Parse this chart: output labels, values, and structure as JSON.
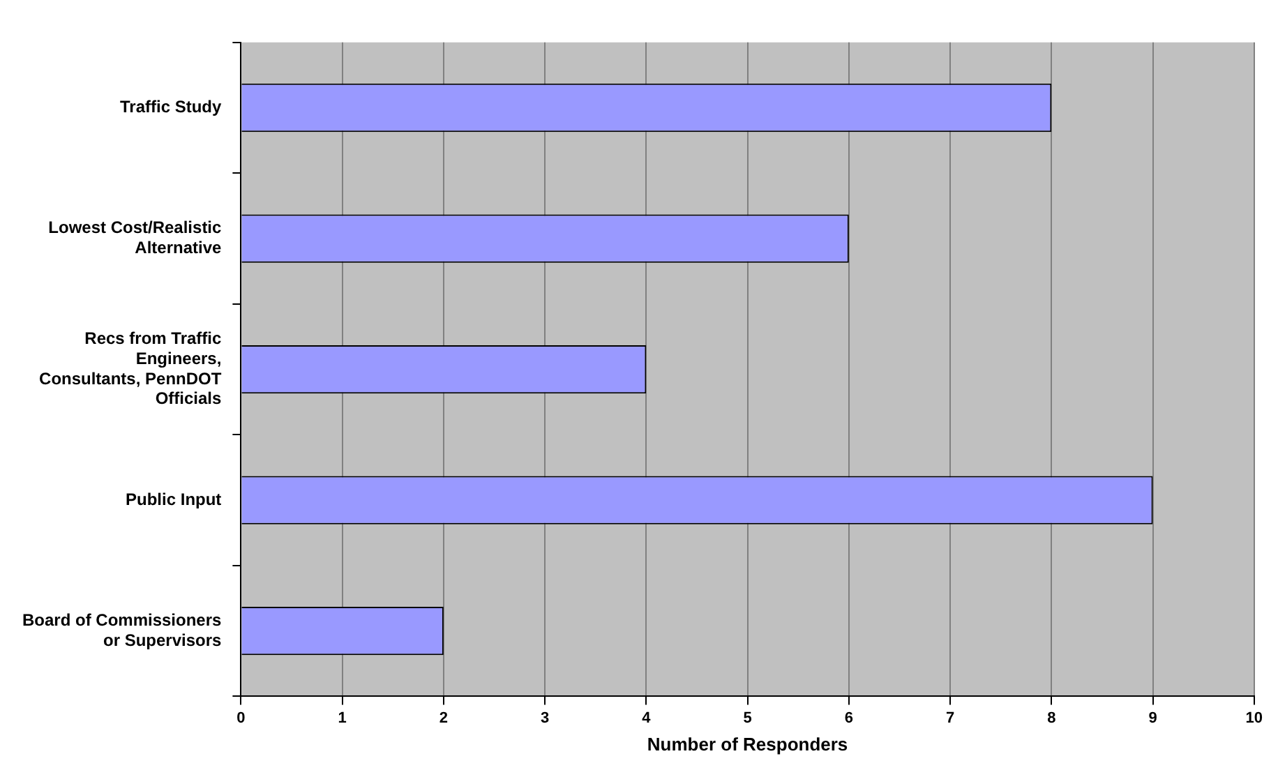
{
  "chart_data": {
    "type": "bar",
    "orientation": "horizontal",
    "xlabel": "Number of Responders",
    "categories": [
      "Traffic Study",
      "Lowest Cost/Realistic Alternative",
      "Recs from Traffic Engineers, Consultants, PennDOT Officials",
      "Public Input",
      "Board of Commissioners or Supervisors"
    ],
    "values": [
      8,
      6,
      4,
      9,
      2
    ],
    "color": "#9999ff",
    "xlim": [
      0,
      10
    ],
    "xticks": [
      0,
      1,
      2,
      3,
      4,
      5,
      6,
      7,
      8,
      9,
      10
    ],
    "grid": "x",
    "legend": false
  }
}
